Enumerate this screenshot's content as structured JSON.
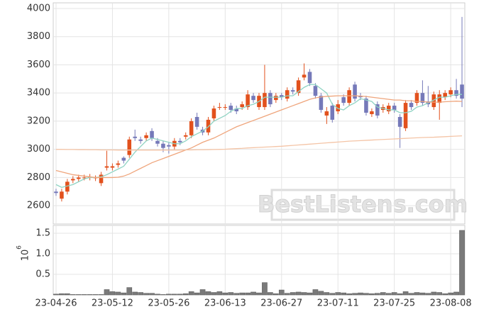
{
  "chart_data": {
    "type": "candlestick",
    "watermark": "BestListens.com",
    "categories": [
      "23-04-26",
      null,
      null,
      null,
      null,
      null,
      null,
      null,
      null,
      null,
      "23-05-12",
      null,
      null,
      null,
      null,
      null,
      null,
      null,
      null,
      null,
      "23-05-26",
      null,
      null,
      null,
      null,
      null,
      null,
      null,
      null,
      null,
      "23-06-13",
      null,
      null,
      null,
      null,
      null,
      null,
      null,
      null,
      null,
      "23-06-27",
      null,
      null,
      null,
      null,
      null,
      null,
      null,
      null,
      null,
      "23-07-11",
      null,
      null,
      null,
      null,
      null,
      null,
      null,
      null,
      null,
      "23-07-25",
      null,
      null,
      null,
      null,
      null,
      null,
      null,
      null,
      null,
      "23-08-08",
      null,
      null
    ],
    "open": [
      2700,
      2650,
      2700,
      2780,
      2790,
      2800,
      2800,
      2795,
      2760,
      2870,
      2870,
      2890,
      2940,
      2960,
      3090,
      3070,
      3080,
      3130,
      3060,
      3040,
      3030,
      3020,
      3060,
      3090,
      3100,
      3230,
      3140,
      3120,
      3220,
      3295,
      3295,
      3310,
      3290,
      3300,
      3300,
      3380,
      3300,
      3300,
      3400,
      3350,
      3385,
      3360,
      3420,
      3400,
      3510,
      3550,
      3450,
      3380,
      3240,
      3310,
      3270,
      3370,
      3330,
      3460,
      3380,
      3360,
      3250,
      3320,
      3280,
      3270,
      3310,
      3230,
      3150,
      3330,
      3330,
      3400,
      3340,
      3300,
      3330,
      3370,
      3390,
      3420,
      3460
    ],
    "high": [
      2720,
      2720,
      2790,
      2810,
      2820,
      2820,
      2825,
      2815,
      2840,
      2990,
      2900,
      2920,
      2950,
      3090,
      3140,
      3090,
      3120,
      3150,
      3080,
      3060,
      3050,
      3080,
      3080,
      3120,
      3220,
      3260,
      3160,
      3230,
      3310,
      3330,
      3320,
      3330,
      3310,
      3340,
      3420,
      3400,
      3400,
      3600,
      3420,
      3400,
      3400,
      3440,
      3440,
      3510,
      3610,
      3570,
      3470,
      3400,
      3300,
      3330,
      3350,
      3390,
      3440,
      3480,
      3400,
      3380,
      3290,
      3340,
      3320,
      3330,
      3330,
      3250,
      3350,
      3350,
      3420,
      3490,
      3450,
      3410,
      3420,
      3420,
      3440,
      3500,
      3940
    ],
    "low": [
      2670,
      2630,
      2680,
      2760,
      2770,
      2780,
      2780,
      2775,
      2740,
      2850,
      2850,
      2870,
      2900,
      2940,
      3060,
      3040,
      3060,
      3060,
      3020,
      2980,
      2970,
      3000,
      3030,
      3070,
      3080,
      3140,
      3100,
      3100,
      3200,
      3280,
      3280,
      3260,
      3250,
      3280,
      3280,
      3330,
      3280,
      3280,
      3300,
      3330,
      3350,
      3340,
      3390,
      3380,
      3490,
      3450,
      3360,
      3260,
      3180,
      3190,
      3250,
      3310,
      3310,
      3340,
      3350,
      3240,
      3230,
      3220,
      3260,
      3250,
      3260,
      3010,
      3130,
      3280,
      3310,
      3310,
      3300,
      3280,
      3210,
      3350,
      3370,
      3360,
      3300
    ],
    "close": [
      2690,
      2700,
      2770,
      2790,
      2800,
      2800,
      2805,
      2800,
      2820,
      2880,
      2880,
      2900,
      2920,
      3070,
      3080,
      3060,
      3100,
      3080,
      3040,
      3010,
      3020,
      3060,
      3050,
      3100,
      3200,
      3160,
      3120,
      3210,
      3290,
      3300,
      3300,
      3280,
      3270,
      3320,
      3390,
      3350,
      3380,
      3400,
      3320,
      3380,
      3370,
      3420,
      3410,
      3490,
      3530,
      3470,
      3380,
      3280,
      3270,
      3210,
      3320,
      3330,
      3420,
      3360,
      3370,
      3260,
      3270,
      3240,
      3300,
      3310,
      3280,
      3160,
      3330,
      3300,
      3400,
      3330,
      3320,
      3390,
      3390,
      3400,
      3420,
      3380,
      3360
    ],
    "up_color": "#e2511d",
    "down_color": "#7579b9",
    "series": [
      {
        "color": "#8fd3c3",
        "values": [
          2750,
          2730,
          2740,
          2750,
          2770,
          2790,
          2800,
          2800,
          2805,
          2820,
          2840,
          2860,
          2880,
          2930,
          2980,
          3020,
          3060,
          3080,
          3070,
          3060,
          3050,
          3040,
          3040,
          3060,
          3090,
          3110,
          3130,
          3160,
          3200,
          3220,
          3240,
          3270,
          3290,
          3290,
          3310,
          3320,
          3340,
          3370,
          3370,
          3370,
          3370,
          3380,
          3380,
          3410,
          3440,
          3460,
          3460,
          3430,
          3400,
          3320,
          3290,
          3280,
          3310,
          3330,
          3360,
          3350,
          3340,
          3300,
          3290,
          3280,
          3280,
          3260,
          3260,
          3270,
          3300,
          3310,
          3330,
          3350,
          3370,
          3370,
          3380,
          3390,
          3390
        ]
      },
      {
        "color": "#efa57c",
        "values": [
          2850,
          2840,
          2830,
          2820,
          2815,
          2810,
          2805,
          2800,
          2800,
          2800,
          2800,
          2802,
          2810,
          2825,
          2845,
          2865,
          2885,
          2905,
          2920,
          2935,
          2950,
          2965,
          2980,
          2995,
          3010,
          3030,
          3050,
          3065,
          3080,
          3100,
          3120,
          3140,
          3160,
          3175,
          3190,
          3205,
          3220,
          3235,
          3250,
          3265,
          3280,
          3295,
          3310,
          3325,
          3340,
          3355,
          3365,
          3372,
          3376,
          3378,
          3380,
          3380,
          3380,
          3380,
          3378,
          3375,
          3370,
          3365,
          3360,
          3355,
          3350,
          3350,
          3345,
          3345,
          3340,
          3340,
          3335,
          3335,
          3335,
          3338,
          3340,
          3342,
          3340
        ]
      },
      {
        "color": "#f4c4a6",
        "values": [
          3000,
          3000,
          2999,
          2999,
          2998,
          2998,
          2997,
          2997,
          2996,
          2996,
          2996,
          2995,
          2995,
          2995,
          2995,
          2995,
          2995,
          2995,
          2995,
          2995,
          2995,
          2995,
          2995,
          2996,
          2996,
          2997,
          2997,
          2998,
          2999,
          3000,
          3001,
          3003,
          3005,
          3007,
          3010,
          3012,
          3014,
          3016,
          3018,
          3020,
          3022,
          3025,
          3028,
          3031,
          3034,
          3037,
          3040,
          3043,
          3046,
          3049,
          3052,
          3055,
          3058,
          3060,
          3062,
          3064,
          3066,
          3068,
          3070,
          3072,
          3074,
          3076,
          3078,
          3080,
          3082,
          3084,
          3085,
          3086,
          3088,
          3090,
          3092,
          3094,
          3096
        ]
      }
    ],
    "ylim": [
      2470,
      4040
    ],
    "yticks": [
      2600,
      2800,
      3000,
      3200,
      3400,
      3600,
      3800,
      4000
    ],
    "grid": true,
    "volume": {
      "color": "#7a7a7a",
      "values": [
        0.02,
        0.03,
        0.03,
        0.01,
        0.01,
        0.01,
        0.01,
        0.01,
        0.01,
        0.13,
        0.08,
        0.07,
        0.05,
        0.18,
        0.07,
        0.06,
        0.04,
        0.04,
        0.02,
        0.01,
        0.02,
        0.02,
        0.02,
        0.03,
        0.08,
        0.05,
        0.13,
        0.08,
        0.06,
        0.08,
        0.05,
        0.06,
        0.04,
        0.05,
        0.05,
        0.07,
        0.05,
        0.3,
        0.06,
        0.03,
        0.12,
        0.04,
        0.06,
        0.07,
        0.06,
        0.05,
        0.13,
        0.09,
        0.06,
        0.04,
        0.06,
        0.05,
        0.03,
        0.04,
        0.05,
        0.04,
        0.03,
        0.04,
        0.06,
        0.04,
        0.06,
        0.03,
        0.08,
        0.04,
        0.06,
        0.05,
        0.04,
        0.07,
        0.06,
        0.03,
        0.05,
        0.07,
        1.57
      ],
      "ylim": [
        0,
        1.69
      ],
      "yticks": [
        0.5,
        {
          "value": 1,
          "label": "1.0"
        },
        1.5
      ],
      "axis_label": "10",
      "axis_label_exponent": "6"
    }
  }
}
